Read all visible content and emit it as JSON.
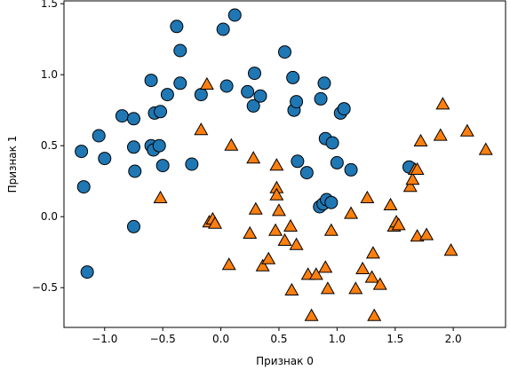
{
  "chart_data": {
    "type": "scatter",
    "title": "",
    "xlabel": "Признак 0",
    "ylabel": "Признак 1",
    "xlim": [
      -1.35,
      2.45
    ],
    "ylim": [
      -0.78,
      1.52
    ],
    "grid": false,
    "xticks": [
      -1.0,
      -0.5,
      0.0,
      0.5,
      1.0,
      1.5,
      2.0
    ],
    "xtick_labels": [
      "−1.0",
      "−0.5",
      "0.0",
      "0.5",
      "1.0",
      "1.5",
      "2.0"
    ],
    "yticks": [
      -0.5,
      0.0,
      0.5,
      1.0,
      1.5
    ],
    "ytick_labels": [
      "−0.5",
      "0.0",
      "0.5",
      "1.0",
      "1.5"
    ],
    "series": [
      {
        "marker": "circle",
        "color": "#1f77b4",
        "points": [
          [
            -1.18,
            0.21
          ],
          [
            -1.2,
            0.46
          ],
          [
            -1.15,
            -0.39
          ],
          [
            -1.05,
            0.57
          ],
          [
            -1.0,
            0.41
          ],
          [
            -0.85,
            0.71
          ],
          [
            -0.75,
            0.69
          ],
          [
            -0.75,
            0.49
          ],
          [
            -0.74,
            0.32
          ],
          [
            -0.75,
            -0.07
          ],
          [
            -0.6,
            0.96
          ],
          [
            -0.6,
            0.5
          ],
          [
            -0.58,
            0.47
          ],
          [
            -0.57,
            0.73
          ],
          [
            -0.53,
            0.5
          ],
          [
            -0.52,
            0.74
          ],
          [
            -0.5,
            0.36
          ],
          [
            -0.46,
            0.86
          ],
          [
            -0.38,
            1.34
          ],
          [
            -0.35,
            1.17
          ],
          [
            -0.35,
            0.94
          ],
          [
            -0.25,
            0.37
          ],
          [
            -0.17,
            0.86
          ],
          [
            0.02,
            1.32
          ],
          [
            0.05,
            0.92
          ],
          [
            0.12,
            1.42
          ],
          [
            0.23,
            0.88
          ],
          [
            0.28,
            0.78
          ],
          [
            0.29,
            1.01
          ],
          [
            0.34,
            0.85
          ],
          [
            0.55,
            1.16
          ],
          [
            0.62,
            0.98
          ],
          [
            0.63,
            0.75
          ],
          [
            0.65,
            0.81
          ],
          [
            0.66,
            0.39
          ],
          [
            0.74,
            0.31
          ],
          [
            0.85,
            0.07
          ],
          [
            0.86,
            0.83
          ],
          [
            0.88,
            0.09
          ],
          [
            0.89,
            0.94
          ],
          [
            0.9,
            0.55
          ],
          [
            0.91,
            0.12
          ],
          [
            0.95,
            0.1
          ],
          [
            0.96,
            0.52
          ],
          [
            1.0,
            0.38
          ],
          [
            1.03,
            0.73
          ],
          [
            1.06,
            0.76
          ],
          [
            1.12,
            0.33
          ],
          [
            1.62,
            0.35
          ]
        ]
      },
      {
        "marker": "triangle",
        "color": "#ff7f0e",
        "points": [
          [
            -0.52,
            0.13
          ],
          [
            -0.17,
            0.61
          ],
          [
            -0.12,
            0.93
          ],
          [
            -0.1,
            -0.04
          ],
          [
            -0.07,
            -0.02
          ],
          [
            -0.05,
            -0.05
          ],
          [
            0.07,
            -0.34
          ],
          [
            0.09,
            0.5
          ],
          [
            0.25,
            -0.12
          ],
          [
            0.28,
            0.41
          ],
          [
            0.3,
            0.05
          ],
          [
            0.36,
            -0.35
          ],
          [
            0.41,
            -0.3
          ],
          [
            0.47,
            -0.1
          ],
          [
            0.48,
            0.36
          ],
          [
            0.48,
            0.2
          ],
          [
            0.48,
            0.15
          ],
          [
            0.5,
            0.04
          ],
          [
            0.55,
            -0.17
          ],
          [
            0.6,
            -0.07
          ],
          [
            0.61,
            -0.52
          ],
          [
            0.65,
            -0.2
          ],
          [
            0.75,
            -0.41
          ],
          [
            0.78,
            -0.7
          ],
          [
            0.82,
            -0.41
          ],
          [
            0.9,
            -0.36
          ],
          [
            0.92,
            -0.51
          ],
          [
            0.95,
            -0.1
          ],
          [
            1.12,
            0.02
          ],
          [
            1.16,
            -0.51
          ],
          [
            1.22,
            -0.37
          ],
          [
            1.26,
            0.13
          ],
          [
            1.3,
            -0.43
          ],
          [
            1.31,
            -0.26
          ],
          [
            1.32,
            -0.7
          ],
          [
            1.37,
            -0.48
          ],
          [
            1.46,
            0.08
          ],
          [
            1.49,
            -0.07
          ],
          [
            1.51,
            -0.04
          ],
          [
            1.53,
            -0.06
          ],
          [
            1.63,
            0.21
          ],
          [
            1.65,
            0.26
          ],
          [
            1.67,
            0.33
          ],
          [
            1.69,
            0.33
          ],
          [
            1.69,
            -0.14
          ],
          [
            1.72,
            0.53
          ],
          [
            1.77,
            -0.13
          ],
          [
            1.89,
            0.57
          ],
          [
            1.91,
            0.79
          ],
          [
            1.98,
            -0.24
          ],
          [
            2.12,
            0.6
          ],
          [
            2.28,
            0.47
          ]
        ]
      }
    ]
  }
}
